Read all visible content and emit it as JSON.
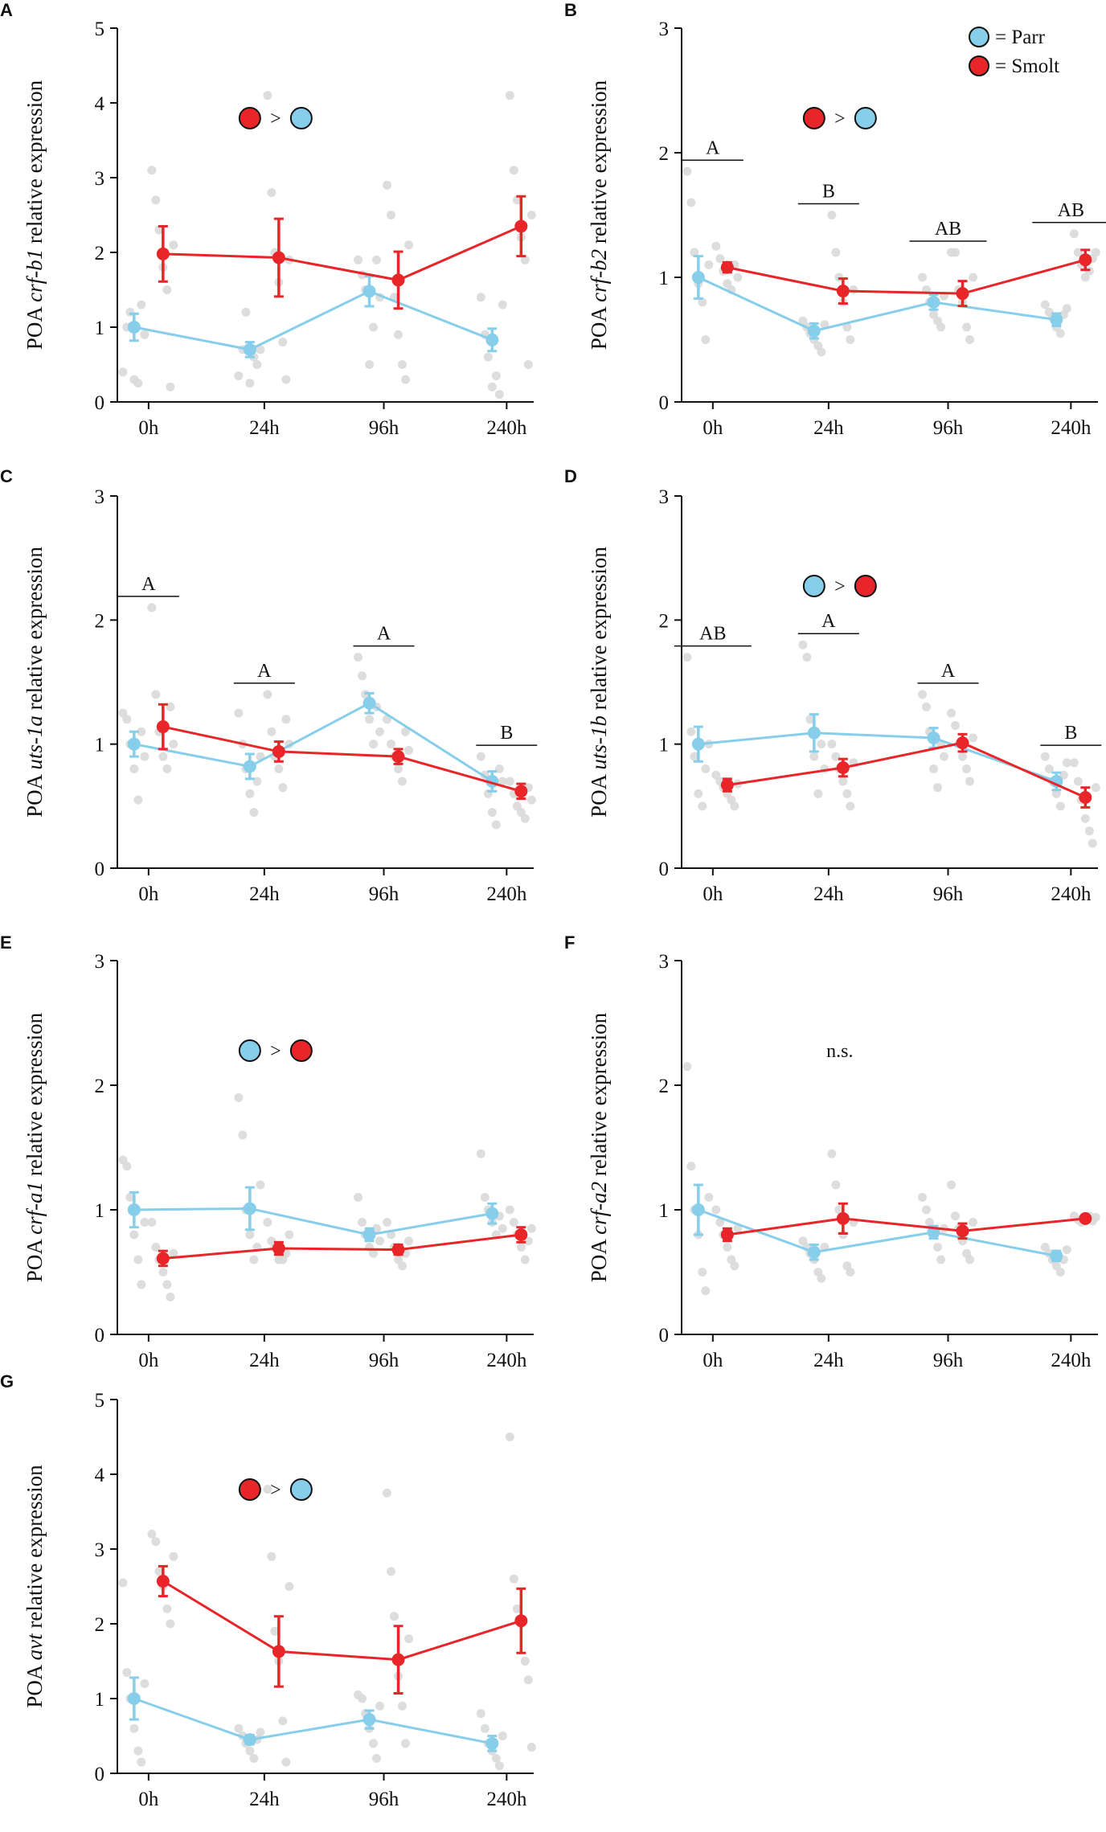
{
  "colors": {
    "parr": "#87CEEB",
    "smolt": "#E8262A",
    "dot": "#D9D9D9",
    "axis": "#111111"
  },
  "legend": {
    "parr_label": "= Parr",
    "smolt_label": "= Smolt"
  },
  "chart_data": [
    {
      "panel": "A",
      "type": "line",
      "ylabel_prefix": "POA ",
      "gene": "crf-b1",
      "ylabel_suffix": " relative expression",
      "categories": [
        "0h",
        "24h",
        "96h",
        "240h"
      ],
      "ylim": [
        0,
        5
      ],
      "yticks": [
        0,
        1,
        2,
        3,
        4,
        5
      ],
      "series": [
        {
          "name": "Parr",
          "values": [
            1.0,
            0.7,
            1.48,
            0.83
          ],
          "err": [
            0.18,
            0.1,
            0.2,
            0.15
          ],
          "points": [
            [
              0.4,
              1.0,
              1.2,
              0.3,
              0.25,
              1.3,
              0.9
            ],
            [
              0.35,
              0.7,
              1.2,
              0.25,
              0.6,
              0.5,
              0.7
            ],
            [
              1.9,
              1.7,
              1.5,
              0.5,
              1.0,
              1.9,
              1.4
            ],
            [
              1.4,
              0.9,
              0.6,
              0.2,
              0.35,
              0.1,
              1.3
            ]
          ]
        },
        {
          "name": "Smolt",
          "values": [
            1.98,
            1.93,
            1.63,
            2.35
          ],
          "err": [
            0.37,
            0.52,
            0.38,
            0.4
          ],
          "points": [
            [
              3.1,
              2.7,
              2.3,
              1.8,
              1.5,
              0.2,
              2.1
            ],
            [
              4.1,
              2.8,
              2.0,
              1.6,
              0.8,
              0.3,
              1.9
            ],
            [
              2.9,
              2.5,
              1.4,
              0.9,
              0.5,
              0.3,
              2.1
            ],
            [
              4.1,
              3.1,
              2.7,
              2.2,
              1.9,
              0.5,
              2.5
            ]
          ]
        }
      ],
      "annotation": {
        "type": "comparison",
        "first": "Smolt",
        "symbol": ">",
        "second": "Parr"
      },
      "letters": []
    },
    {
      "panel": "B",
      "type": "line",
      "ylabel_prefix": "POA ",
      "gene": "crf-b2",
      "ylabel_suffix": " relative expression",
      "categories": [
        "0h",
        "24h",
        "96h",
        "240h"
      ],
      "ylim": [
        0,
        3
      ],
      "yticks": [
        0,
        1,
        2,
        3
      ],
      "series": [
        {
          "name": "Parr",
          "values": [
            1.0,
            0.57,
            0.8,
            0.66
          ],
          "err": [
            0.17,
            0.06,
            0.06,
            0.05
          ],
          "points": [
            [
              1.85,
              1.6,
              1.2,
              0.95,
              0.8,
              0.5,
              1.1
            ],
            [
              0.65,
              0.6,
              0.55,
              0.5,
              0.45,
              0.4,
              0.62
            ],
            [
              1.0,
              0.9,
              0.8,
              0.7,
              0.65,
              0.6,
              0.85
            ],
            [
              0.78,
              0.72,
              0.68,
              0.6,
              0.55,
              0.7,
              0.75
            ]
          ]
        },
        {
          "name": "Smolt",
          "values": [
            1.08,
            0.89,
            0.87,
            1.14
          ],
          "err": [
            0.04,
            0.1,
            0.1,
            0.08
          ],
          "points": [
            [
              1.25,
              1.15,
              1.05,
              0.95,
              0.9,
              1.1,
              1.0
            ],
            [
              1.5,
              1.2,
              1.0,
              0.8,
              0.6,
              0.5,
              0.9
            ],
            [
              1.2,
              1.2,
              0.9,
              0.8,
              0.6,
              0.5,
              1.0
            ],
            [
              1.35,
              1.2,
              1.1,
              1.0,
              1.05,
              1.15,
              1.2
            ]
          ]
        }
      ],
      "annotation": {
        "type": "comparison",
        "first": "Smolt",
        "symbol": ">",
        "second": "Parr"
      },
      "letters": [
        "A",
        "B",
        "AB",
        "AB"
      ],
      "legend": true
    },
    {
      "panel": "C",
      "type": "line",
      "ylabel_prefix": "POA ",
      "gene": "uts-1a",
      "ylabel_suffix": " relative expression",
      "categories": [
        "0h",
        "24h",
        "96h",
        "240h"
      ],
      "ylim": [
        0,
        3
      ],
      "yticks": [
        0,
        1,
        2,
        3
      ],
      "series": [
        {
          "name": "Parr",
          "values": [
            1.0,
            0.82,
            1.33,
            0.7
          ],
          "err": [
            0.1,
            0.1,
            0.08,
            0.08
          ],
          "points": [
            [
              1.25,
              1.2,
              1.0,
              0.8,
              0.55,
              1.1,
              0.9
            ],
            [
              1.25,
              1.0,
              0.8,
              0.6,
              0.45,
              0.7,
              0.9
            ],
            [
              1.7,
              1.55,
              1.4,
              1.2,
              1.0,
              1.3,
              1.1
            ],
            [
              0.9,
              0.75,
              0.6,
              0.45,
              0.35,
              0.8,
              0.7
            ]
          ]
        },
        {
          "name": "Smolt",
          "values": [
            1.14,
            0.94,
            0.9,
            0.62
          ],
          "err": [
            0.18,
            0.08,
            0.06,
            0.06
          ],
          "points": [
            [
              2.1,
              1.4,
              1.1,
              0.9,
              0.8,
              1.3,
              1.0
            ],
            [
              1.4,
              1.1,
              0.9,
              0.8,
              0.65,
              1.2,
              1.0
            ],
            [
              1.2,
              1.0,
              0.9,
              0.8,
              0.7,
              1.1,
              0.95
            ],
            [
              0.7,
              0.6,
              0.5,
              0.45,
              0.4,
              0.65,
              0.55
            ]
          ]
        }
      ],
      "annotation": null,
      "letters": [
        "A",
        "A",
        "A",
        "B"
      ]
    },
    {
      "panel": "D",
      "type": "line",
      "ylabel_prefix": "POA ",
      "gene": "uts-1b",
      "ylabel_suffix": " relative expression",
      "categories": [
        "0h",
        "24h",
        "96h",
        "240h"
      ],
      "ylim": [
        0,
        3
      ],
      "yticks": [
        0,
        1,
        2,
        3
      ],
      "series": [
        {
          "name": "Parr",
          "values": [
            1.0,
            1.09,
            1.05,
            0.7
          ],
          "err": [
            0.14,
            0.15,
            0.08,
            0.07
          ],
          "points": [
            [
              1.7,
              1.1,
              0.9,
              0.6,
              0.5,
              0.8,
              1.0
            ],
            [
              1.8,
              1.7,
              1.2,
              0.9,
              0.6,
              1.0,
              0.8
            ],
            [
              1.4,
              1.3,
              1.1,
              0.8,
              0.65,
              1.0,
              0.9
            ],
            [
              0.9,
              0.8,
              0.7,
              0.6,
              0.5,
              0.75,
              0.85
            ]
          ]
        },
        {
          "name": "Smolt",
          "values": [
            0.67,
            0.81,
            1.01,
            0.57
          ],
          "err": [
            0.05,
            0.07,
            0.07,
            0.08
          ],
          "points": [
            [
              0.75,
              0.7,
              0.65,
              0.6,
              0.55,
              0.5,
              0.68
            ],
            [
              1.0,
              0.9,
              0.8,
              0.7,
              0.6,
              0.5,
              0.85
            ],
            [
              1.25,
              1.15,
              1.0,
              0.9,
              0.8,
              0.7,
              1.05
            ],
            [
              0.85,
              0.7,
              0.55,
              0.4,
              0.3,
              0.2,
              0.65
            ]
          ]
        }
      ],
      "annotation": {
        "type": "comparison",
        "first": "Parr",
        "symbol": ">",
        "second": "Smolt"
      },
      "letters": [
        "AB",
        "A",
        "A",
        "B"
      ]
    },
    {
      "panel": "E",
      "type": "line",
      "ylabel_prefix": "POA ",
      "gene": "crf-a1",
      "ylabel_suffix": " relative expression",
      "categories": [
        "0h",
        "24h",
        "96h",
        "240h"
      ],
      "ylim": [
        0,
        3
      ],
      "yticks": [
        0,
        1,
        2,
        3
      ],
      "series": [
        {
          "name": "Parr",
          "values": [
            1.0,
            1.01,
            0.8,
            0.97
          ],
          "err": [
            0.14,
            0.17,
            0.05,
            0.08
          ],
          "points": [
            [
              1.4,
              1.35,
              1.1,
              0.8,
              0.6,
              0.4,
              0.9
            ],
            [
              1.9,
              1.6,
              1.0,
              0.8,
              0.6,
              0.7,
              1.2
            ],
            [
              1.1,
              0.9,
              0.8,
              0.7,
              0.65,
              0.85,
              0.75
            ],
            [
              1.45,
              1.1,
              1.0,
              0.9,
              0.8,
              0.95,
              0.85
            ]
          ]
        },
        {
          "name": "Smolt",
          "values": [
            0.61,
            0.69,
            0.68,
            0.8
          ],
          "err": [
            0.06,
            0.05,
            0.04,
            0.06
          ],
          "points": [
            [
              0.9,
              0.7,
              0.6,
              0.5,
              0.4,
              0.3,
              0.65
            ],
            [
              0.9,
              0.75,
              0.7,
              0.6,
              0.6,
              0.65,
              0.8
            ],
            [
              0.9,
              0.8,
              0.7,
              0.6,
              0.55,
              0.65,
              0.75
            ],
            [
              1.0,
              0.9,
              0.8,
              0.7,
              0.6,
              0.75,
              0.85
            ]
          ]
        }
      ],
      "annotation": {
        "type": "comparison",
        "first": "Parr",
        "symbol": ">",
        "second": "Smolt"
      },
      "letters": []
    },
    {
      "panel": "F",
      "type": "line",
      "ylabel_prefix": "POA ",
      "gene": "crf-a2",
      "ylabel_suffix": " relative expression",
      "categories": [
        "0h",
        "24h",
        "96h",
        "240h"
      ],
      "ylim": [
        0,
        3
      ],
      "yticks": [
        0,
        1,
        2,
        3
      ],
      "series": [
        {
          "name": "Parr",
          "values": [
            1.0,
            0.66,
            0.82,
            0.63
          ],
          "err": [
            0.2,
            0.06,
            0.05,
            0.04
          ],
          "points": [
            [
              2.15,
              1.35,
              1.0,
              0.8,
              0.5,
              0.35,
              1.1
            ],
            [
              0.75,
              0.7,
              0.65,
              0.6,
              0.5,
              0.45,
              0.7
            ],
            [
              1.1,
              1.0,
              0.9,
              0.8,
              0.7,
              0.6,
              0.85
            ],
            [
              0.7,
              0.65,
              0.6,
              0.55,
              0.5,
              0.6,
              0.68
            ]
          ]
        },
        {
          "name": "Smolt",
          "values": [
            0.8,
            0.93,
            0.83,
            0.93
          ],
          "err": [
            0.05,
            0.12,
            0.06,
            0.02
          ],
          "points": [
            [
              1.0,
              0.9,
              0.8,
              0.7,
              0.6,
              0.55,
              0.85
            ],
            [
              1.45,
              1.2,
              1.0,
              0.8,
              0.55,
              0.5,
              0.9
            ],
            [
              1.2,
              0.95,
              0.85,
              0.75,
              0.65,
              0.6,
              0.9
            ],
            [
              0.95,
              0.92,
              0.9,
              0.93,
              0.95,
              0.91,
              0.94
            ]
          ]
        }
      ],
      "annotation": {
        "type": "text",
        "text": "n.s."
      },
      "letters": []
    },
    {
      "panel": "G",
      "type": "line",
      "ylabel_prefix": "POA ",
      "gene": "avt",
      "ylabel_suffix": " relative expression",
      "categories": [
        "0h",
        "24h",
        "96h",
        "240h"
      ],
      "ylim": [
        0,
        5
      ],
      "yticks": [
        0,
        1,
        2,
        3,
        4,
        5
      ],
      "series": [
        {
          "name": "Parr",
          "values": [
            1.0,
            0.45,
            0.72,
            0.4
          ],
          "err": [
            0.28,
            0.06,
            0.12,
            0.1
          ],
          "points": [
            [
              2.55,
              1.35,
              1.0,
              0.6,
              0.3,
              0.15,
              1.2
            ],
            [
              0.6,
              0.5,
              0.4,
              0.3,
              0.2,
              0.45,
              0.55
            ],
            [
              1.05,
              1.0,
              0.8,
              0.6,
              0.4,
              0.2,
              0.9
            ],
            [
              0.8,
              0.6,
              0.4,
              0.3,
              0.2,
              0.1,
              0.5
            ]
          ]
        },
        {
          "name": "Smolt",
          "values": [
            2.57,
            1.63,
            1.52,
            2.04
          ],
          "err": [
            0.2,
            0.47,
            0.45,
            0.43
          ],
          "points": [
            [
              3.2,
              3.1,
              2.7,
              2.5,
              2.2,
              2.0,
              2.9
            ],
            [
              3.8,
              2.9,
              1.9,
              1.5,
              0.7,
              0.15,
              2.5
            ],
            [
              3.75,
              2.7,
              2.1,
              1.3,
              0.9,
              0.4,
              1.8
            ],
            [
              4.5,
              2.6,
              2.2,
              2.0,
              1.5,
              1.25,
              0.35
            ]
          ]
        }
      ],
      "annotation": {
        "type": "comparison",
        "first": "Smolt",
        "symbol": ">",
        "second": "Parr"
      },
      "letters": []
    }
  ]
}
